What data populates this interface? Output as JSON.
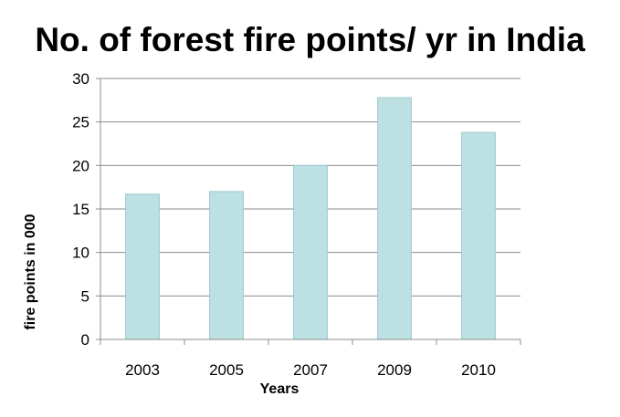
{
  "chart_data": {
    "type": "bar",
    "title": "No. of forest fire points/ yr in India",
    "xlabel": "Years",
    "ylabel": "fire points in 000",
    "categories": [
      "2003",
      "2005",
      "2007",
      "2009",
      "2010"
    ],
    "values": [
      16.7,
      17.0,
      20.0,
      27.8,
      23.8
    ],
    "ylim": [
      0,
      30
    ],
    "yticks": [
      "0",
      "5",
      "10",
      "15",
      "20",
      "25",
      "30"
    ],
    "grid": true,
    "legend": "none",
    "colors": {
      "bar_fill": "#bde1e3",
      "bar_stroke": "#9cc9cc",
      "grid": "#8c8c8c",
      "axis": "#8c8c8c",
      "text": "#000000"
    }
  }
}
